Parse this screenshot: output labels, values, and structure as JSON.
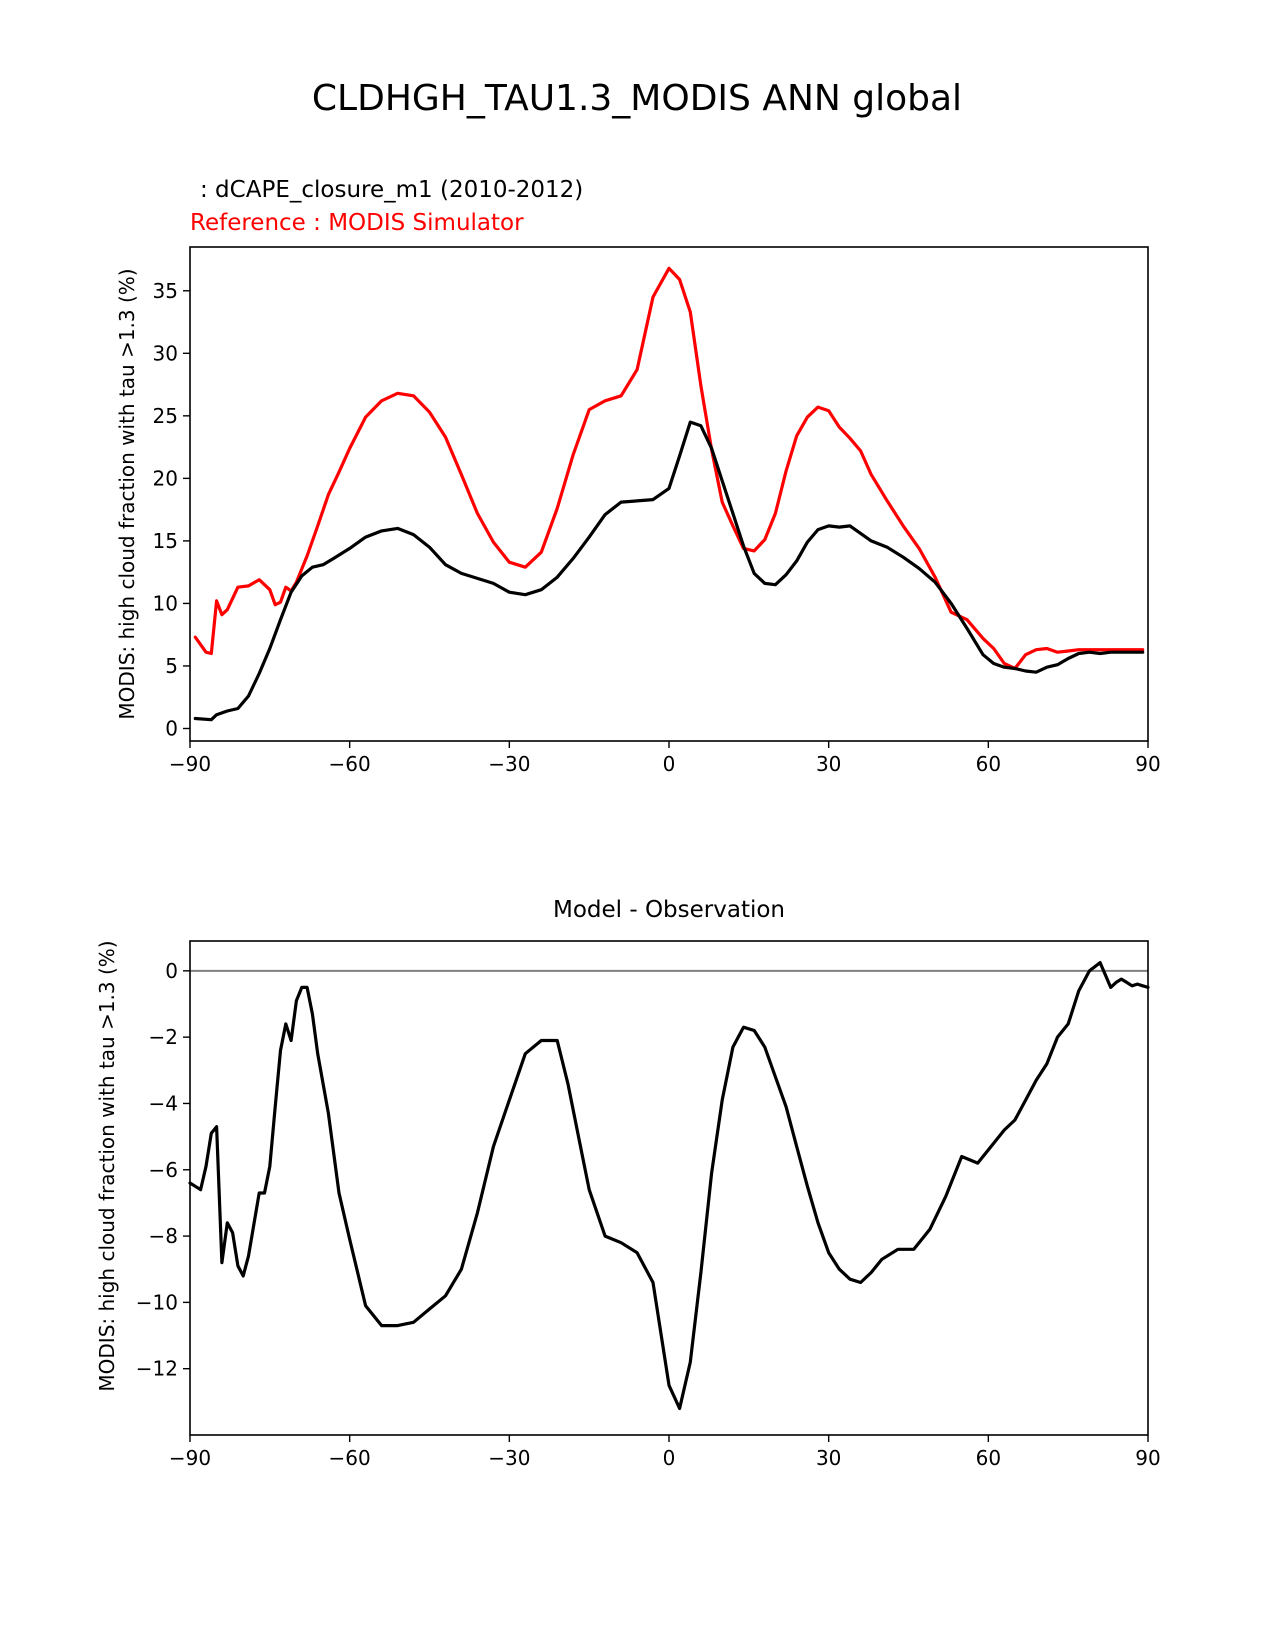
{
  "figure": {
    "title": "CLDHGH_TAU1.3_MODIS ANN global"
  },
  "chart_data": [
    {
      "type": "line",
      "subtitle_test": ": dCAPE_closure_m1 (2010-2012)",
      "subtitle_ref": "Reference : MODIS Simulator",
      "ylabel": "MODIS: high cloud fraction with tau >1.3 (%)",
      "xlabel": "",
      "xlim": [
        -90,
        90
      ],
      "ylim": [
        -1,
        38.5
      ],
      "xticks": [
        "−90",
        "−60",
        "−30",
        "0",
        "30",
        "60",
        "90"
      ],
      "yticks": [
        "0",
        "5",
        "10",
        "15",
        "20",
        "25",
        "30",
        "35"
      ],
      "grid": false,
      "colors": {
        "test": "#000000",
        "reference": "#ff0000"
      },
      "series": [
        {
          "key": "test",
          "x": [
            -89,
            -86,
            -85,
            -83,
            -81,
            -79,
            -77,
            -75,
            -73,
            -71,
            -69,
            -67,
            -65,
            -63,
            -60,
            -57,
            -54,
            -51,
            -48,
            -45,
            -42,
            -39,
            -36,
            -33,
            -30,
            -27,
            -24,
            -21,
            -18,
            -15,
            -12,
            -9,
            -6,
            -3,
            0,
            2,
            4,
            6,
            8,
            10,
            12,
            14,
            16,
            18,
            20,
            22,
            24,
            26,
            28,
            30,
            32,
            34,
            36,
            38,
            41,
            44,
            47,
            50,
            53,
            56,
            59,
            61,
            63,
            65,
            67,
            69,
            71,
            73,
            75,
            77,
            79,
            81,
            83,
            85,
            87,
            89
          ],
          "y": [
            0.8,
            0.7,
            1.1,
            1.4,
            1.6,
            2.6,
            4.4,
            6.4,
            8.7,
            10.9,
            12.2,
            12.9,
            13.1,
            13.6,
            14.4,
            15.3,
            15.8,
            16.0,
            15.5,
            14.5,
            13.1,
            12.4,
            12.0,
            11.6,
            10.9,
            10.7,
            11.1,
            12.1,
            13.6,
            15.3,
            17.1,
            18.1,
            18.2,
            18.3,
            19.2,
            21.8,
            24.5,
            24.2,
            22.4,
            19.8,
            17.2,
            14.6,
            12.4,
            11.6,
            11.5,
            12.3,
            13.4,
            14.9,
            15.9,
            16.2,
            16.1,
            16.2,
            15.6,
            15.0,
            14.5,
            13.7,
            12.8,
            11.7,
            10.0,
            8.0,
            5.9,
            5.2,
            4.9,
            4.8,
            4.6,
            4.5,
            4.9,
            5.1,
            5.6,
            6.0,
            6.1,
            6.0,
            6.1,
            6.1,
            6.1,
            6.1
          ]
        },
        {
          "key": "reference",
          "x": [
            -89,
            -87,
            -86,
            -85,
            -84,
            -83,
            -81,
            -79,
            -77,
            -75,
            -74,
            -73,
            -72,
            -71,
            -70,
            -68,
            -66,
            -64,
            -62,
            -60,
            -57,
            -54,
            -51,
            -48,
            -45,
            -42,
            -39,
            -36,
            -33,
            -30,
            -27,
            -24,
            -21,
            -18,
            -15,
            -12,
            -9,
            -6,
            -3,
            0,
            2,
            4,
            6,
            8,
            10,
            12,
            14,
            16,
            18,
            20,
            22,
            24,
            26,
            28,
            30,
            32,
            34,
            36,
            38,
            41,
            44,
            47,
            50,
            53,
            56,
            59,
            61,
            63,
            65,
            67,
            69,
            71,
            73,
            75,
            77,
            79,
            81,
            83,
            85,
            87,
            89
          ],
          "y": [
            7.3,
            6.1,
            6.0,
            10.2,
            9.1,
            9.5,
            11.3,
            11.4,
            11.9,
            11.1,
            9.9,
            10.1,
            11.3,
            11.0,
            11.7,
            13.8,
            16.2,
            18.7,
            20.5,
            22.4,
            24.9,
            26.2,
            26.8,
            26.6,
            25.3,
            23.3,
            20.3,
            17.2,
            14.9,
            13.3,
            12.9,
            14.1,
            17.6,
            21.9,
            25.5,
            26.2,
            26.6,
            28.7,
            34.5,
            36.8,
            35.9,
            33.3,
            27.4,
            22.3,
            18.1,
            16.2,
            14.4,
            14.2,
            15.1,
            17.2,
            20.6,
            23.4,
            24.9,
            25.7,
            25.4,
            24.1,
            23.2,
            22.2,
            20.3,
            18.2,
            16.2,
            14.4,
            12.1,
            9.3,
            8.7,
            7.2,
            6.4,
            5.2,
            4.8,
            5.9,
            6.3,
            6.4,
            6.1,
            6.2,
            6.3,
            6.3,
            6.3,
            6.3,
            6.3,
            6.3,
            6.3
          ]
        }
      ]
    },
    {
      "type": "line",
      "title": "Model - Observation",
      "ylabel": "MODIS: high cloud fraction with tau >1.3 (%)",
      "xlabel": "",
      "xlim": [
        -90,
        90
      ],
      "ylim": [
        -14,
        0.9
      ],
      "xticks": [
        "−90",
        "−60",
        "−30",
        "0",
        "30",
        "60",
        "90"
      ],
      "yticks": [
        "0",
        "−2",
        "−4",
        "−6",
        "−8",
        "−10",
        "−12"
      ],
      "zero_line": true,
      "grid": false,
      "colors": {
        "diff": "#000000",
        "zero_line": "#808080"
      },
      "series": [
        {
          "key": "diff",
          "x": [
            -90,
            -89,
            -88,
            -87,
            -86,
            -85,
            -84,
            -83,
            -82,
            -81,
            -80,
            -79,
            -77,
            -76,
            -75,
            -74,
            -73,
            -72,
            -71,
            -70,
            -69,
            -68,
            -67,
            -66,
            -64,
            -62,
            -60,
            -57,
            -54,
            -51,
            -48,
            -45,
            -42,
            -39,
            -36,
            -33,
            -30,
            -27,
            -24,
            -21,
            -19,
            -17,
            -15,
            -12,
            -9,
            -6,
            -3,
            0,
            2,
            4,
            6,
            8,
            10,
            12,
            14,
            16,
            18,
            20,
            22,
            24,
            26,
            28,
            30,
            32,
            34,
            36,
            38,
            40,
            43,
            46,
            49,
            52,
            55,
            58,
            61,
            63,
            65,
            67,
            69,
            71,
            73,
            75,
            77,
            79,
            81,
            83,
            84,
            85,
            86,
            87,
            88,
            89,
            90
          ],
          "y": [
            -6.4,
            -6.5,
            -6.6,
            -5.9,
            -4.9,
            -4.7,
            -8.8,
            -7.6,
            -7.9,
            -8.9,
            -9.2,
            -8.6,
            -6.7,
            -6.7,
            -5.9,
            -4.1,
            -2.4,
            -1.6,
            -2.1,
            -0.9,
            -0.5,
            -0.5,
            -1.3,
            -2.5,
            -4.3,
            -6.7,
            -8.1,
            -10.1,
            -10.7,
            -10.7,
            -10.6,
            -10.2,
            -9.8,
            -9.0,
            -7.3,
            -5.3,
            -3.9,
            -2.5,
            -2.1,
            -2.1,
            -3.4,
            -5.0,
            -6.6,
            -8.0,
            -8.2,
            -8.5,
            -9.4,
            -12.5,
            -13.2,
            -11.8,
            -9.1,
            -6.1,
            -3.9,
            -2.3,
            -1.7,
            -1.8,
            -2.3,
            -3.2,
            -4.1,
            -5.3,
            -6.5,
            -7.6,
            -8.5,
            -9.0,
            -9.3,
            -9.4,
            -9.1,
            -8.7,
            -8.4,
            -8.4,
            -7.8,
            -6.8,
            -5.6,
            -5.8,
            -5.2,
            -4.8,
            -4.5,
            -3.9,
            -3.3,
            -2.8,
            -2.0,
            -1.6,
            -0.6,
            0.0,
            0.25,
            -0.5,
            -0.35,
            -0.25,
            -0.35,
            -0.45,
            -0.4,
            -0.45,
            -0.5
          ]
        }
      ]
    }
  ]
}
